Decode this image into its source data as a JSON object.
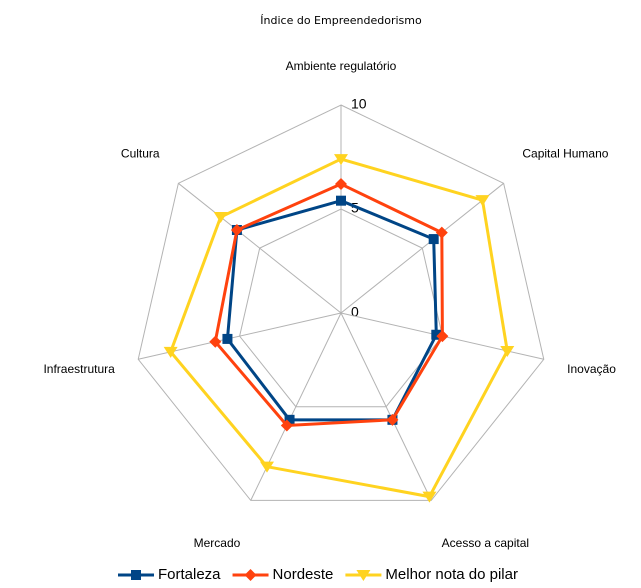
{
  "chart_data": {
    "type": "radar",
    "title": "Índice do Empreendedorismo",
    "categories": [
      "Ambiente regulatório",
      "Capital Humano",
      "Inovação",
      "Acesso a capital",
      "Mercado",
      "Infraestrutura",
      "Cultura"
    ],
    "series": [
      {
        "name": "Fortaleza",
        "color": "#004586",
        "marker": "square",
        "values": [
          5.4,
          5.7,
          4.7,
          5.7,
          5.7,
          5.6,
          6.4
        ]
      },
      {
        "name": "Nordeste",
        "color": "#ff420e",
        "marker": "diamond",
        "values": [
          6.2,
          6.2,
          5.0,
          5.7,
          6.0,
          6.2,
          6.4
        ]
      },
      {
        "name": "Melhor nota do pilar",
        "color": "#ffd320",
        "marker": "triangle-down",
        "values": [
          7.4,
          8.7,
          8.2,
          9.8,
          8.2,
          8.4,
          7.4
        ]
      }
    ],
    "rlim": [
      0,
      10
    ],
    "rticks": [
      0,
      5,
      10
    ],
    "grid": true,
    "legend": "bottom"
  }
}
